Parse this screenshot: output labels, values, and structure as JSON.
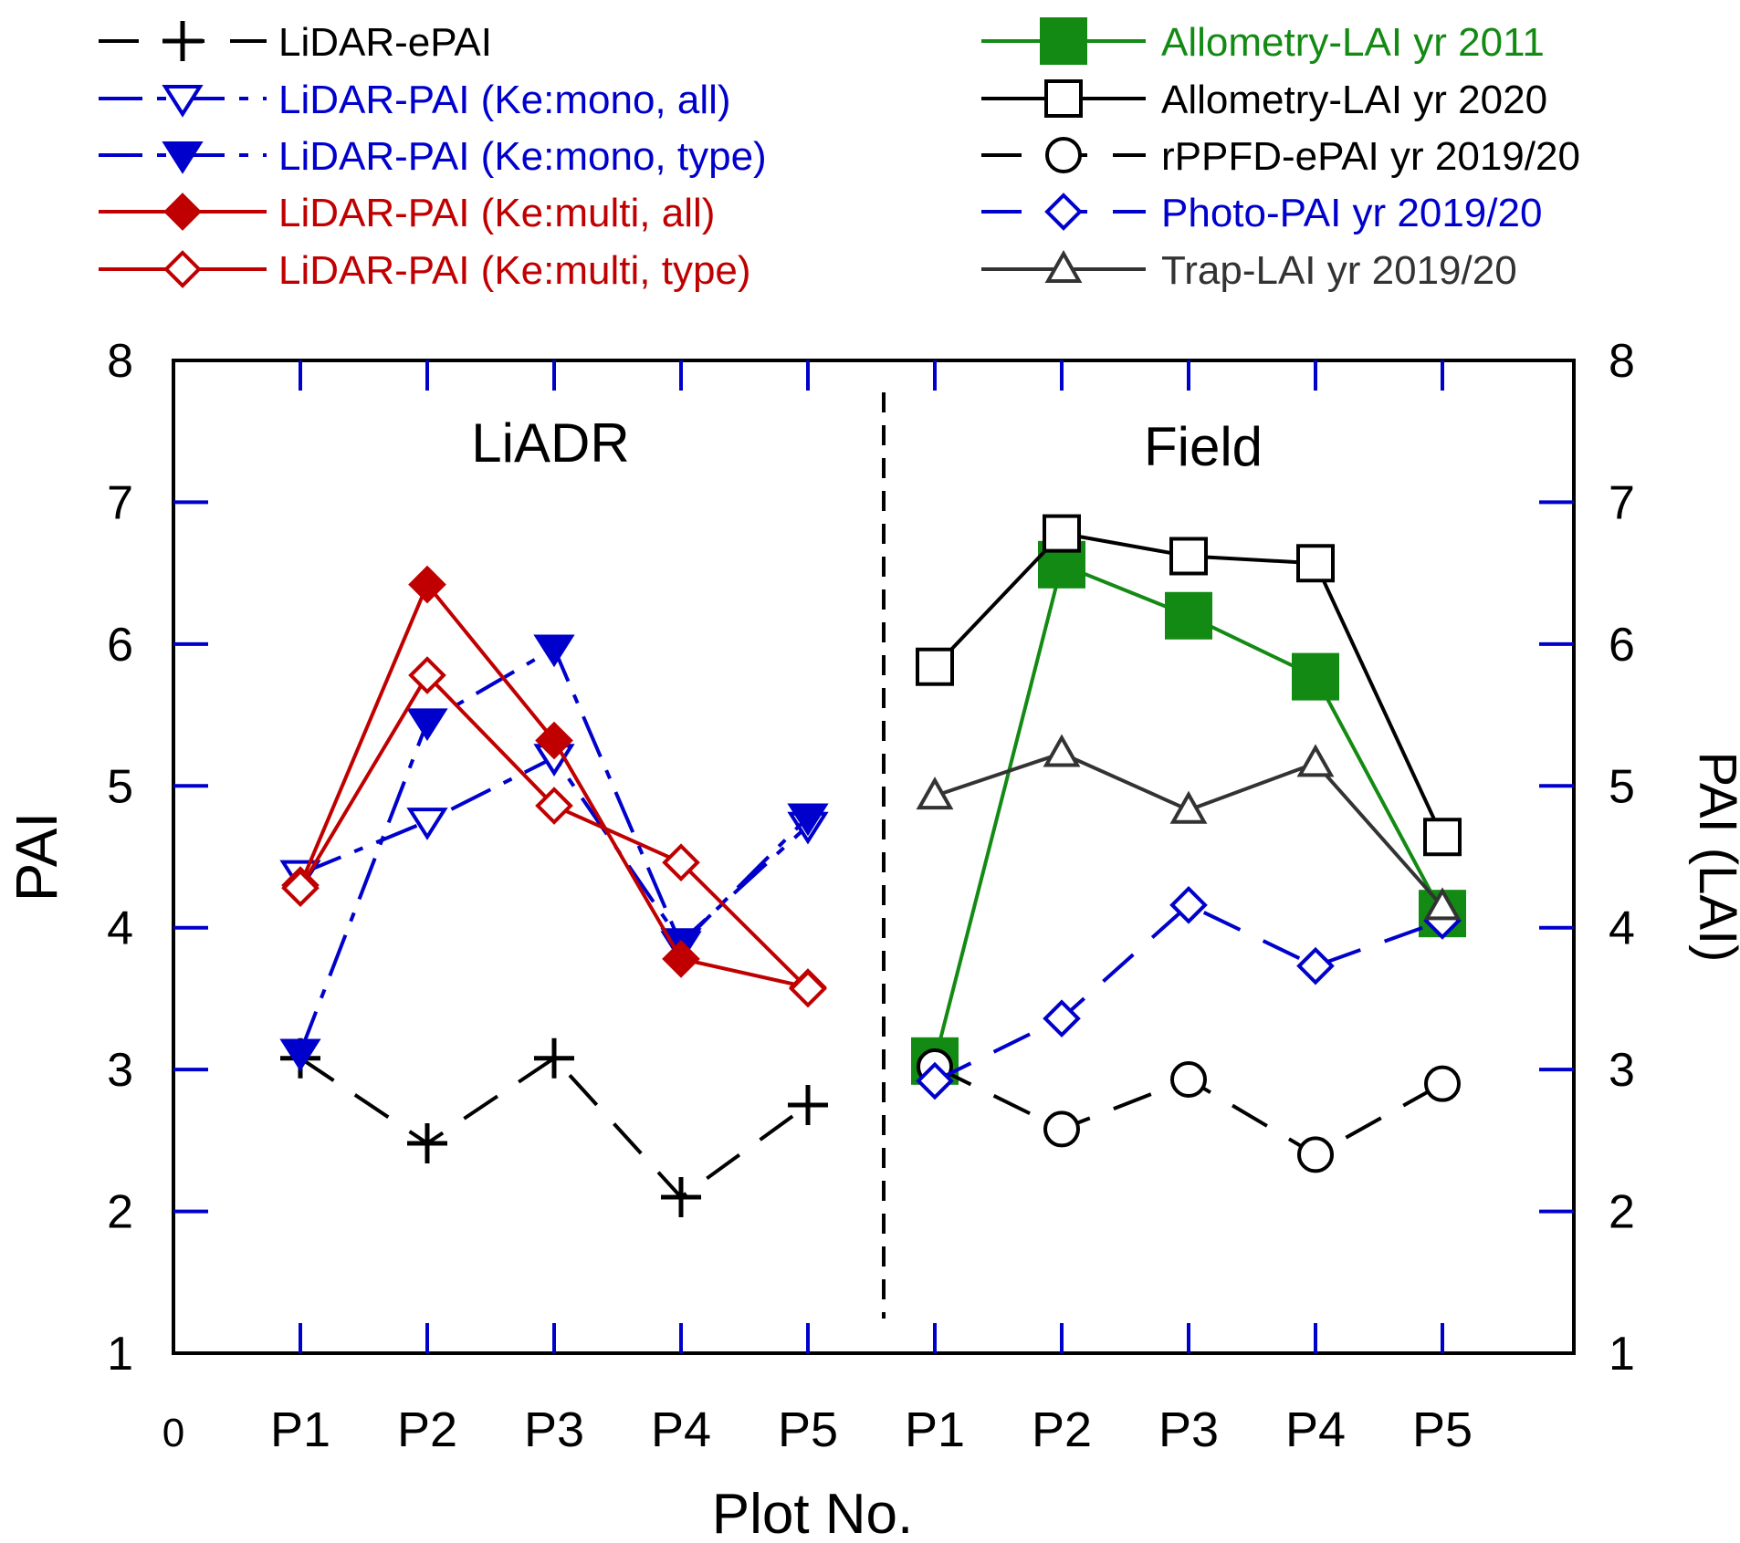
{
  "chart_data": {
    "type": "line",
    "x_zero_label": "0",
    "categories": [
      "P1",
      "P2",
      "P3",
      "P4",
      "P5"
    ],
    "xlabel": "Plot No.",
    "ylabel": "PAI",
    "ylabel_right": "PAI (LAI)",
    "ylim": [
      1,
      8
    ],
    "yticks": [
      "1",
      "2",
      "3",
      "4",
      "5",
      "6",
      "7",
      "8"
    ],
    "panels": [
      {
        "label": "LiADR"
      },
      {
        "label": "Field"
      }
    ],
    "series": [
      {
        "name": "LiDAR-ePAI",
        "panel": 0,
        "values": [
          3.08,
          2.48,
          3.08,
          2.1,
          2.75
        ],
        "color": "#000000",
        "marker": "plus",
        "dash": "long"
      },
      {
        "name": "LiDAR-PAI (Ke:mono, all)",
        "panel": 0,
        "values": [
          4.38,
          4.75,
          5.2,
          3.9,
          4.72
        ],
        "color": "#0000cc",
        "marker": "triangle-down-open",
        "dash": "dashdot"
      },
      {
        "name": "LiDAR-PAI (Ke:mono, type)",
        "panel": 0,
        "values": [
          3.12,
          5.45,
          5.97,
          3.88,
          4.78
        ],
        "color": "#0000cc",
        "marker": "triangle-down-filled",
        "dash": "dashdot"
      },
      {
        "name": "LiDAR-PAI (Ke:multi, all)",
        "panel": 0,
        "values": [
          4.3,
          6.42,
          5.32,
          3.78,
          3.58
        ],
        "color": "#c00000",
        "marker": "diamond-filled",
        "dash": "solid"
      },
      {
        "name": "LiDAR-PAI (Ke:multi, type)",
        "panel": 0,
        "values": [
          4.28,
          5.78,
          4.86,
          4.46,
          3.57
        ],
        "color": "#c00000",
        "marker": "diamond-open",
        "dash": "solid"
      },
      {
        "name": "Allometry-LAI yr 2011",
        "panel": 1,
        "values": [
          3.06,
          6.56,
          6.2,
          5.77,
          4.1
        ],
        "color": "#138a13",
        "marker": "square-filled",
        "dash": "solid"
      },
      {
        "name": "Allometry-LAI yr 2020",
        "panel": 1,
        "values": [
          5.84,
          6.78,
          6.62,
          6.57,
          4.64
        ],
        "color": "#000000",
        "marker": "square-open",
        "dash": "solid"
      },
      {
        "name": "rPPFD-ePAI yr 2019/20",
        "panel": 1,
        "values": [
          3.02,
          2.58,
          2.93,
          2.4,
          2.9
        ],
        "color": "#000000",
        "marker": "circle-open",
        "dash": "long"
      },
      {
        "name": "Photo-PAI yr 2019/20",
        "panel": 1,
        "values": [
          2.92,
          3.36,
          4.16,
          3.73,
          4.05
        ],
        "color": "#0000cc",
        "marker": "diamond-open",
        "dash": "long"
      },
      {
        "name": "Trap-LAI yr 2019/20",
        "panel": 1,
        "values": [
          4.93,
          5.23,
          4.83,
          5.16,
          4.15
        ],
        "color": "#333333",
        "marker": "triangle-up-open",
        "dash": "solid"
      }
    ],
    "legend": "top"
  }
}
